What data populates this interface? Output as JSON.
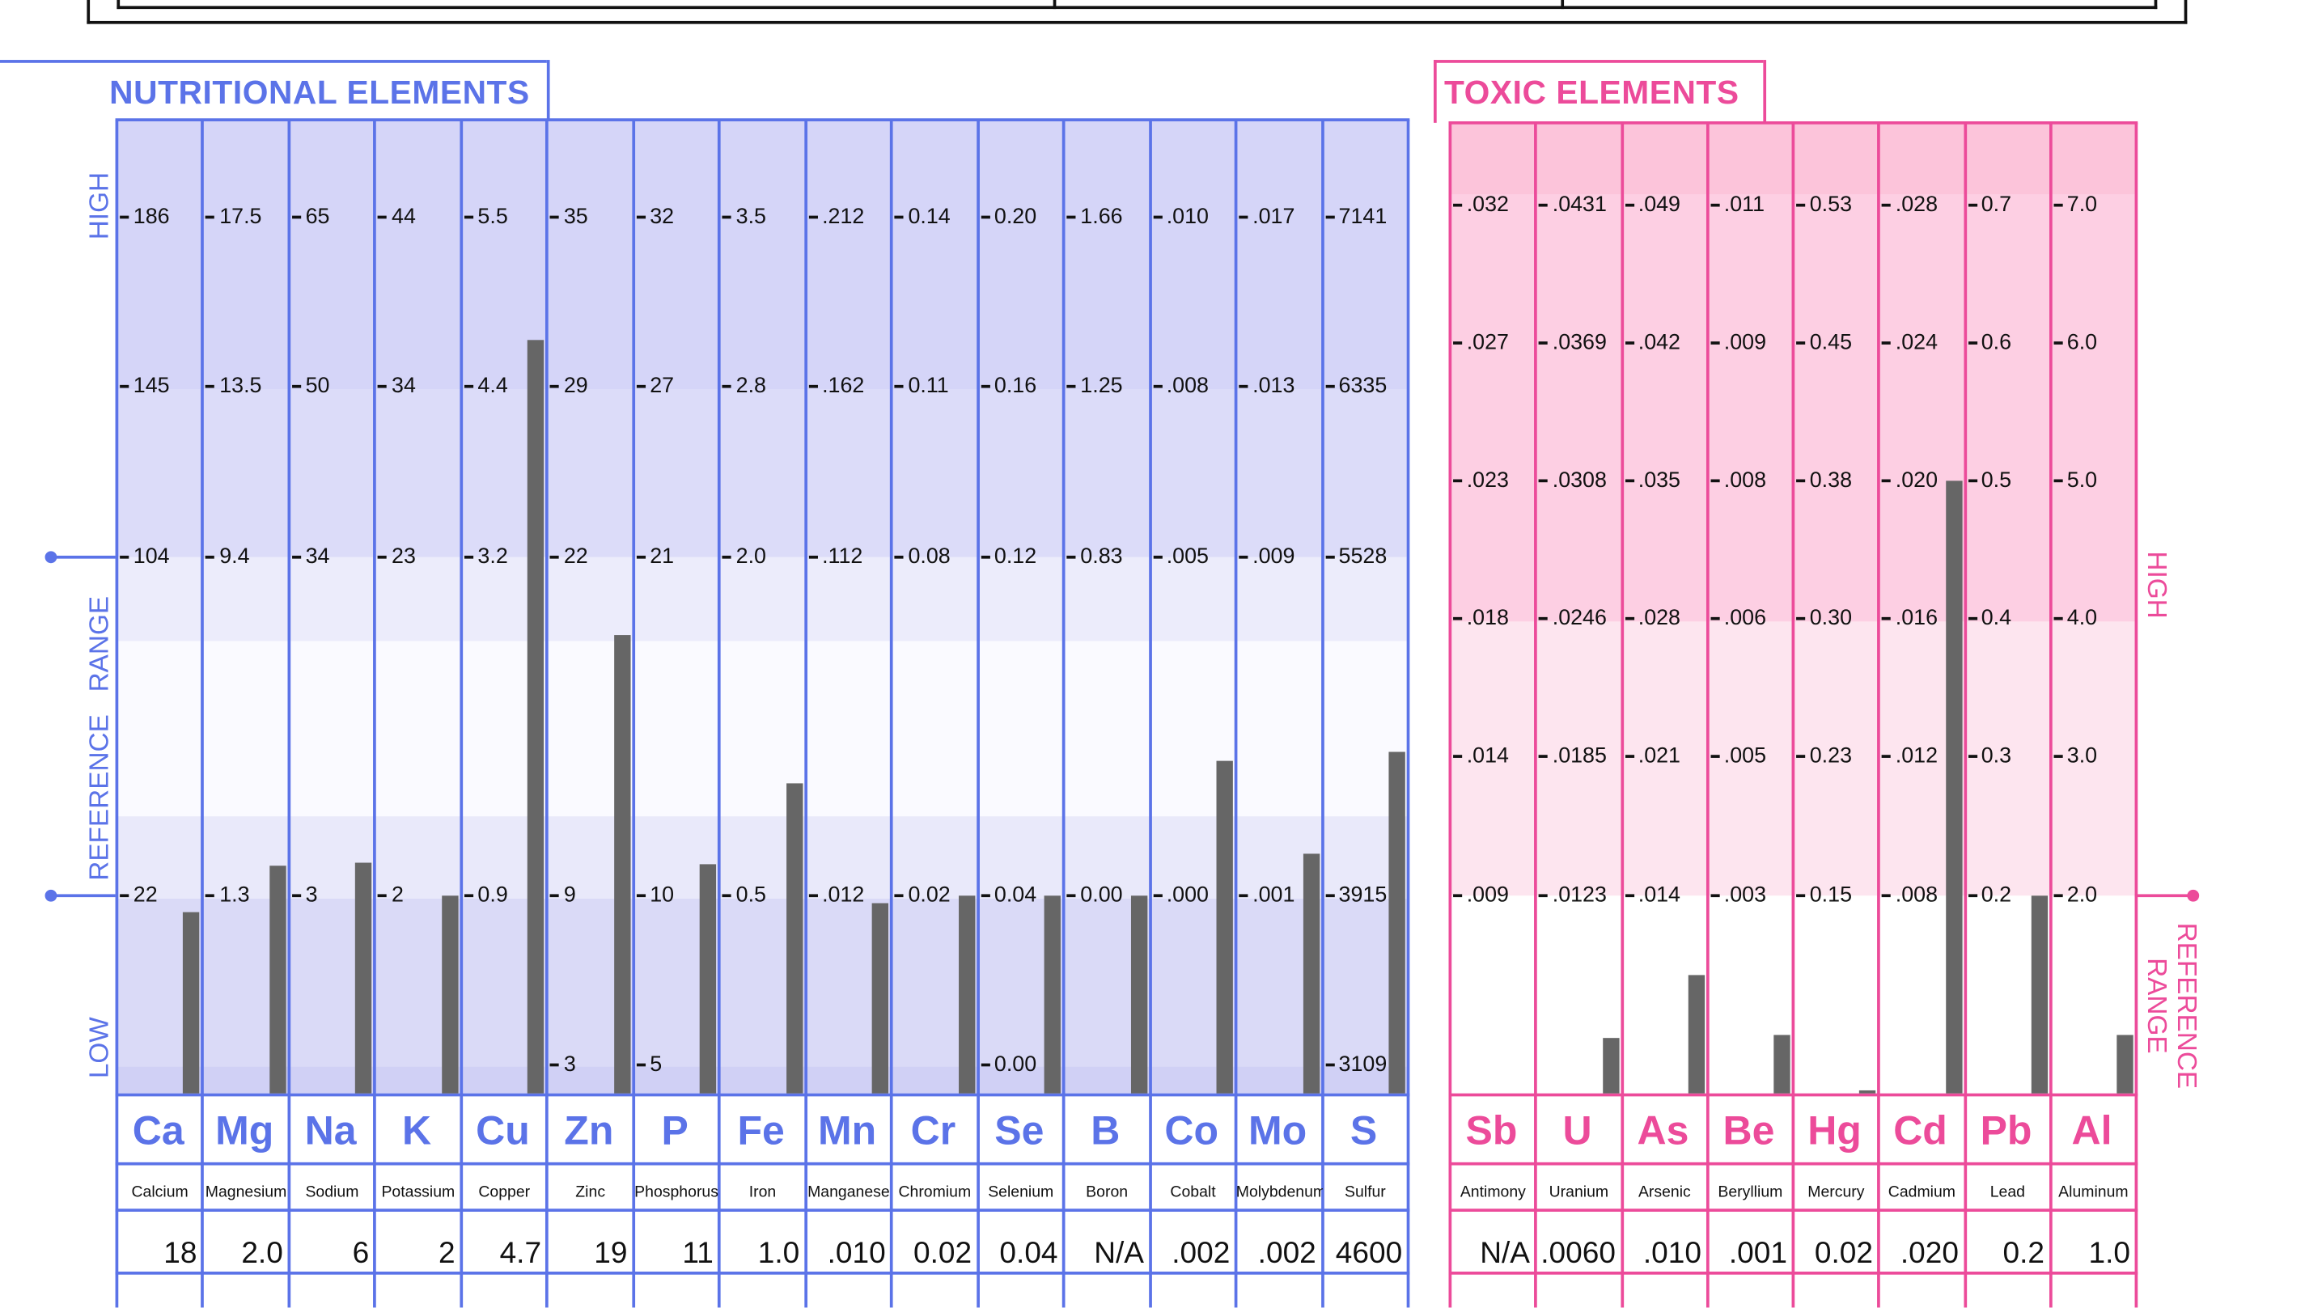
{
  "colors": {
    "nutritional": "#5b73e8",
    "toxic": "#ec4b9a",
    "bar": "#666666"
  },
  "chart_data": [
    {
      "type": "bar",
      "title": "NUTRITIONAL ELEMENTS",
      "axis_labels": {
        "high": "HIGH",
        "reference": "REFERENCE   RANGE",
        "low": "LOW"
      },
      "elements": [
        {
          "symbol": "Ca",
          "name": "Calcium",
          "result": "18",
          "ticks": [
            "186",
            "145",
            "104",
            "22"
          ]
        },
        {
          "symbol": "Mg",
          "name": "Magnesium",
          "result": "2.0",
          "ticks": [
            "17.5",
            "13.5",
            "9.4",
            "1.3"
          ]
        },
        {
          "symbol": "Na",
          "name": "Sodium",
          "result": "6",
          "ticks": [
            "65",
            "50",
            "34",
            "3"
          ]
        },
        {
          "symbol": "K",
          "name": "Potassium",
          "result": "2",
          "ticks": [
            "44",
            "34",
            "23",
            "2"
          ]
        },
        {
          "symbol": "Cu",
          "name": "Copper",
          "result": "4.7",
          "ticks": [
            "5.5",
            "4.4",
            "3.2",
            "0.9"
          ]
        },
        {
          "symbol": "Zn",
          "name": "Zinc",
          "result": "19",
          "ticks": [
            "35",
            "29",
            "22",
            "9",
            "3"
          ]
        },
        {
          "symbol": "P",
          "name": "Phosphorus",
          "result": "11",
          "ticks": [
            "32",
            "27",
            "21",
            "10",
            "5"
          ]
        },
        {
          "symbol": "Fe",
          "name": "Iron",
          "result": "1.0",
          "ticks": [
            "3.5",
            "2.8",
            "2.0",
            "0.5"
          ]
        },
        {
          "symbol": "Mn",
          "name": "Manganese",
          "result": ".010",
          "ticks": [
            ".212",
            ".162",
            ".112",
            ".012"
          ]
        },
        {
          "symbol": "Cr",
          "name": "Chromium",
          "result": "0.02",
          "ticks": [
            "0.14",
            "0.11",
            "0.08",
            "0.02"
          ]
        },
        {
          "symbol": "Se",
          "name": "Selenium",
          "result": "0.04",
          "ticks": [
            "0.20",
            "0.16",
            "0.12",
            "0.04",
            "0.00"
          ]
        },
        {
          "symbol": "B",
          "name": "Boron",
          "result": "N/A",
          "bar_at": "0.00",
          "ticks": [
            "1.66",
            "1.25",
            "0.83",
            "0.00"
          ]
        },
        {
          "symbol": "Co",
          "name": "Cobalt",
          "result": ".002",
          "ticks": [
            ".010",
            ".008",
            ".005",
            ".000"
          ]
        },
        {
          "symbol": "Mo",
          "name": "Molybdenum",
          "result": ".002",
          "ticks": [
            ".017",
            ".013",
            ".009",
            ".001"
          ]
        },
        {
          "symbol": "S",
          "name": "Sulfur",
          "result": "4600",
          "ticks": [
            "7141",
            "6335",
            "5528",
            "3915",
            "3109"
          ]
        }
      ]
    },
    {
      "type": "bar",
      "title": "TOXIC ELEMENTS",
      "axis_labels": {
        "high": "HIGH",
        "reference": "REFERENCE\nRANGE"
      },
      "elements": [
        {
          "symbol": "Sb",
          "name": "Antimony",
          "result": "N/A",
          "ticks": [
            ".032",
            ".027",
            ".023",
            ".018",
            ".014",
            ".009"
          ]
        },
        {
          "symbol": "U",
          "name": "Uranium",
          "result": ".0060",
          "ticks": [
            ".0431",
            ".0369",
            ".0308",
            ".0246",
            ".0185",
            ".0123"
          ]
        },
        {
          "symbol": "As",
          "name": "Arsenic",
          "result": ".010",
          "ticks": [
            ".049",
            ".042",
            ".035",
            ".028",
            ".021",
            ".014"
          ]
        },
        {
          "symbol": "Be",
          "name": "Beryllium",
          "result": ".001",
          "ticks": [
            ".011",
            ".009",
            ".008",
            ".006",
            ".005",
            ".003"
          ]
        },
        {
          "symbol": "Hg",
          "name": "Mercury",
          "result": "0.02",
          "ticks": [
            "0.53",
            "0.45",
            "0.38",
            "0.30",
            "0.23",
            "0.15"
          ]
        },
        {
          "symbol": "Cd",
          "name": "Cadmium",
          "result": ".020",
          "ticks": [
            ".028",
            ".024",
            ".020",
            ".016",
            ".012",
            ".008"
          ]
        },
        {
          "symbol": "Pb",
          "name": "Lead",
          "result": "0.2",
          "ticks": [
            "0.7",
            "0.6",
            "0.5",
            "0.4",
            "0.3",
            "0.2"
          ]
        },
        {
          "symbol": "Al",
          "name": "Aluminum",
          "result": "1.0",
          "ticks": [
            "7.0",
            "6.0",
            "5.0",
            "4.0",
            "3.0",
            "2.0"
          ]
        }
      ]
    }
  ]
}
